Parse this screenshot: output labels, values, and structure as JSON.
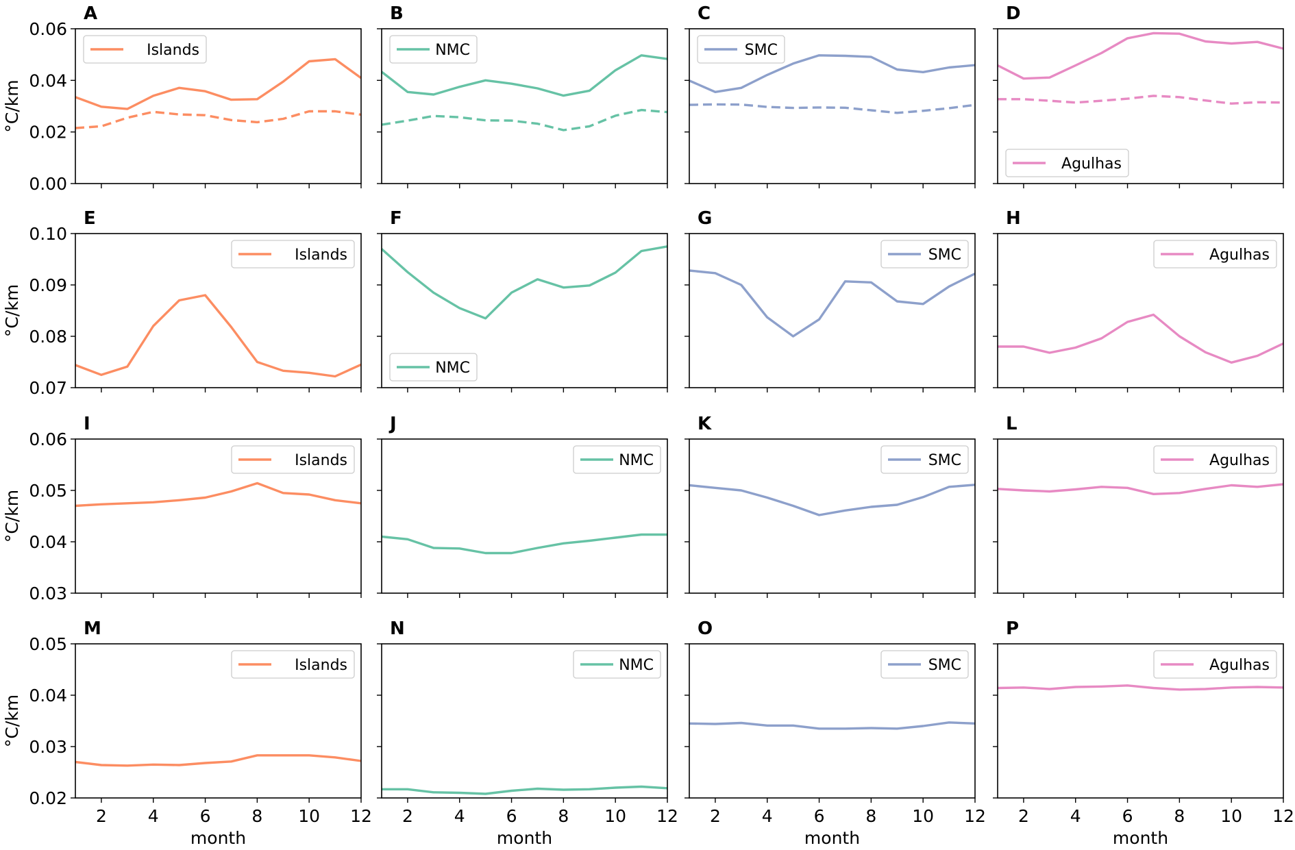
{
  "figure": {
    "y_label": "°C/km",
    "x_label": "month"
  },
  "chart_data": [
    {
      "panel": "A",
      "type": "line",
      "x": [
        1,
        2,
        3,
        4,
        5,
        6,
        7,
        8,
        9,
        10,
        11,
        12
      ],
      "ylim": [
        0.0,
        0.06
      ],
      "yticks": [
        0.0,
        0.02,
        0.04,
        0.06
      ],
      "ytick_labels": [
        "0.00",
        "0.02",
        "0.04",
        "0.06"
      ],
      "xticks": [
        2,
        4,
        6,
        8,
        10,
        12
      ],
      "color": "#fc8d62",
      "legend": {
        "label": "Islands",
        "position": "top-left"
      },
      "series": [
        {
          "name": "Islands",
          "style": "solid",
          "values": [
            0.0335,
            0.0298,
            0.0289,
            0.034,
            0.0371,
            0.0358,
            0.0325,
            0.0327,
            0.0395,
            0.0474,
            0.0482,
            0.0409
          ]
        },
        {
          "name": "Islands (dashed)",
          "style": "dashed",
          "values": [
            0.0215,
            0.0222,
            0.0255,
            0.0278,
            0.0268,
            0.0265,
            0.0246,
            0.0238,
            0.0251,
            0.028,
            0.028,
            0.0267
          ]
        }
      ]
    },
    {
      "panel": "B",
      "type": "line",
      "x": [
        1,
        2,
        3,
        4,
        5,
        6,
        7,
        8,
        9,
        10,
        11,
        12
      ],
      "ylim": [
        0.0,
        0.06
      ],
      "yticks": [
        0.0,
        0.02,
        0.04,
        0.06
      ],
      "xticks": [
        2,
        4,
        6,
        8,
        10,
        12
      ],
      "color": "#66c2a5",
      "legend": {
        "label": "NMC",
        "position": "top-left"
      },
      "series": [
        {
          "name": "NMC",
          "style": "solid",
          "values": [
            0.0433,
            0.0355,
            0.0345,
            0.0375,
            0.04,
            0.0387,
            0.0369,
            0.0341,
            0.036,
            0.0439,
            0.0497,
            0.0483
          ]
        },
        {
          "name": "NMC (dashed)",
          "style": "dashed",
          "values": [
            0.0228,
            0.0244,
            0.0262,
            0.0257,
            0.0245,
            0.0244,
            0.0232,
            0.0207,
            0.0222,
            0.0263,
            0.0285,
            0.0277
          ]
        }
      ]
    },
    {
      "panel": "C",
      "type": "line",
      "x": [
        1,
        2,
        3,
        4,
        5,
        6,
        7,
        8,
        9,
        10,
        11,
        12
      ],
      "ylim": [
        0.0,
        0.06
      ],
      "yticks": [
        0.0,
        0.02,
        0.04,
        0.06
      ],
      "xticks": [
        2,
        4,
        6,
        8,
        10,
        12
      ],
      "color": "#8da0cb",
      "legend": {
        "label": "SMC",
        "position": "top-left"
      },
      "series": [
        {
          "name": "SMC",
          "style": "solid",
          "values": [
            0.0399,
            0.0355,
            0.0371,
            0.0421,
            0.0465,
            0.0497,
            0.0495,
            0.0491,
            0.0442,
            0.0432,
            0.045,
            0.0459
          ]
        },
        {
          "name": "SMC (dashed)",
          "style": "dashed",
          "values": [
            0.0305,
            0.0307,
            0.0306,
            0.0297,
            0.0293,
            0.0295,
            0.0294,
            0.0284,
            0.0274,
            0.0282,
            0.0292,
            0.0305
          ]
        }
      ]
    },
    {
      "panel": "D",
      "type": "line",
      "x": [
        1,
        2,
        3,
        4,
        5,
        6,
        7,
        8,
        9,
        10,
        11,
        12
      ],
      "ylim": [
        0.0,
        0.06
      ],
      "yticks": [
        0.0,
        0.02,
        0.04,
        0.06
      ],
      "xticks": [
        2,
        4,
        6,
        8,
        10,
        12
      ],
      "color": "#e78ac3",
      "legend": {
        "label": "Agulhas",
        "position": "bottom-left"
      },
      "series": [
        {
          "name": "Agulhas",
          "style": "solid",
          "values": [
            0.0458,
            0.0407,
            0.0411,
            0.0458,
            0.0506,
            0.0563,
            0.0583,
            0.0581,
            0.0551,
            0.0543,
            0.0549,
            0.0523
          ]
        },
        {
          "name": "Agulhas (dashed)",
          "style": "dashed",
          "values": [
            0.0327,
            0.0327,
            0.0321,
            0.0314,
            0.0321,
            0.0329,
            0.034,
            0.0335,
            0.0322,
            0.031,
            0.0315,
            0.0314
          ]
        }
      ]
    },
    {
      "panel": "E",
      "type": "line",
      "x": [
        1,
        2,
        3,
        4,
        5,
        6,
        7,
        8,
        9,
        10,
        11,
        12
      ],
      "ylim": [
        0.07,
        0.1
      ],
      "yticks": [
        0.07,
        0.08,
        0.09,
        0.1
      ],
      "ytick_labels": [
        "0.07",
        "0.08",
        "0.09",
        "0.10"
      ],
      "xticks": [
        2,
        4,
        6,
        8,
        10,
        12
      ],
      "color": "#fc8d62",
      "legend": {
        "label": "Islands",
        "position": "top-right"
      },
      "series": [
        {
          "name": "Islands",
          "style": "solid",
          "values": [
            0.0744,
            0.0725,
            0.0741,
            0.082,
            0.087,
            0.088,
            0.0818,
            0.075,
            0.0733,
            0.0729,
            0.0722,
            0.0745
          ]
        }
      ]
    },
    {
      "panel": "F",
      "type": "line",
      "x": [
        1,
        2,
        3,
        4,
        5,
        6,
        7,
        8,
        9,
        10,
        11,
        12
      ],
      "ylim": [
        0.07,
        0.1
      ],
      "yticks": [
        0.07,
        0.08,
        0.09,
        0.1
      ],
      "xticks": [
        2,
        4,
        6,
        8,
        10,
        12
      ],
      "color": "#66c2a5",
      "legend": {
        "label": "NMC",
        "position": "bottom-left"
      },
      "series": [
        {
          "name": "NMC",
          "style": "solid",
          "values": [
            0.097,
            0.0925,
            0.0885,
            0.0855,
            0.0835,
            0.0885,
            0.0911,
            0.0895,
            0.0899,
            0.0924,
            0.0966,
            0.0975
          ]
        }
      ]
    },
    {
      "panel": "G",
      "type": "line",
      "x": [
        1,
        2,
        3,
        4,
        5,
        6,
        7,
        8,
        9,
        10,
        11,
        12
      ],
      "ylim": [
        0.07,
        0.1
      ],
      "yticks": [
        0.07,
        0.08,
        0.09,
        0.1
      ],
      "xticks": [
        2,
        4,
        6,
        8,
        10,
        12
      ],
      "color": "#8da0cb",
      "legend": {
        "label": "SMC",
        "position": "top-right"
      },
      "series": [
        {
          "name": "SMC",
          "style": "solid",
          "values": [
            0.0928,
            0.0923,
            0.09,
            0.0837,
            0.08,
            0.0833,
            0.0907,
            0.0905,
            0.0868,
            0.0863,
            0.0897,
            0.0922
          ]
        }
      ]
    },
    {
      "panel": "H",
      "type": "line",
      "x": [
        1,
        2,
        3,
        4,
        5,
        6,
        7,
        8,
        9,
        10,
        11,
        12
      ],
      "ylim": [
        0.07,
        0.1
      ],
      "yticks": [
        0.07,
        0.08,
        0.09,
        0.1
      ],
      "xticks": [
        2,
        4,
        6,
        8,
        10,
        12
      ],
      "color": "#e78ac3",
      "legend": {
        "label": "Agulhas",
        "position": "top-right"
      },
      "series": [
        {
          "name": "Agulhas",
          "style": "solid",
          "values": [
            0.078,
            0.078,
            0.0768,
            0.0778,
            0.0796,
            0.0828,
            0.0842,
            0.08,
            0.0769,
            0.0749,
            0.0762,
            0.0786
          ]
        }
      ]
    },
    {
      "panel": "I",
      "type": "line",
      "x": [
        1,
        2,
        3,
        4,
        5,
        6,
        7,
        8,
        9,
        10,
        11,
        12
      ],
      "ylim": [
        0.03,
        0.06
      ],
      "yticks": [
        0.03,
        0.04,
        0.05,
        0.06
      ],
      "ytick_labels": [
        "0.03",
        "0.04",
        "0.05",
        "0.06"
      ],
      "xticks": [
        2,
        4,
        6,
        8,
        10,
        12
      ],
      "color": "#fc8d62",
      "legend": {
        "label": "Islands",
        "position": "top-right"
      },
      "series": [
        {
          "name": "Islands",
          "style": "solid",
          "values": [
            0.047,
            0.0473,
            0.0475,
            0.0477,
            0.0481,
            0.0486,
            0.0498,
            0.0514,
            0.0495,
            0.0492,
            0.0481,
            0.0475
          ]
        }
      ]
    },
    {
      "panel": "J",
      "type": "line",
      "x": [
        1,
        2,
        3,
        4,
        5,
        6,
        7,
        8,
        9,
        10,
        11,
        12
      ],
      "ylim": [
        0.03,
        0.06
      ],
      "yticks": [
        0.03,
        0.04,
        0.05,
        0.06
      ],
      "xticks": [
        2,
        4,
        6,
        8,
        10,
        12
      ],
      "color": "#66c2a5",
      "legend": {
        "label": "NMC",
        "position": "top-right"
      },
      "series": [
        {
          "name": "NMC",
          "style": "solid",
          "values": [
            0.041,
            0.0405,
            0.0388,
            0.0387,
            0.0378,
            0.0378,
            0.0388,
            0.0397,
            0.0402,
            0.0408,
            0.0414,
            0.0414
          ]
        }
      ]
    },
    {
      "panel": "K",
      "type": "line",
      "x": [
        1,
        2,
        3,
        4,
        5,
        6,
        7,
        8,
        9,
        10,
        11,
        12
      ],
      "ylim": [
        0.03,
        0.06
      ],
      "yticks": [
        0.03,
        0.04,
        0.05,
        0.06
      ],
      "xticks": [
        2,
        4,
        6,
        8,
        10,
        12
      ],
      "color": "#8da0cb",
      "legend": {
        "label": "SMC",
        "position": "top-right"
      },
      "series": [
        {
          "name": "SMC",
          "style": "solid",
          "values": [
            0.051,
            0.0505,
            0.05,
            0.0486,
            0.047,
            0.0452,
            0.0461,
            0.0468,
            0.0472,
            0.0487,
            0.0507,
            0.0511
          ]
        }
      ]
    },
    {
      "panel": "L",
      "type": "line",
      "x": [
        1,
        2,
        3,
        4,
        5,
        6,
        7,
        8,
        9,
        10,
        11,
        12
      ],
      "ylim": [
        0.03,
        0.06
      ],
      "yticks": [
        0.03,
        0.04,
        0.05,
        0.06
      ],
      "xticks": [
        2,
        4,
        6,
        8,
        10,
        12
      ],
      "color": "#e78ac3",
      "legend": {
        "label": "Agulhas",
        "position": "top-right"
      },
      "series": [
        {
          "name": "Agulhas",
          "style": "solid",
          "values": [
            0.0503,
            0.05,
            0.0498,
            0.0502,
            0.0507,
            0.0505,
            0.0493,
            0.0495,
            0.0503,
            0.051,
            0.0507,
            0.0512
          ]
        }
      ]
    },
    {
      "panel": "M",
      "type": "line",
      "x": [
        1,
        2,
        3,
        4,
        5,
        6,
        7,
        8,
        9,
        10,
        11,
        12
      ],
      "ylim": [
        0.02,
        0.05
      ],
      "yticks": [
        0.02,
        0.03,
        0.04,
        0.05
      ],
      "ytick_labels": [
        "0.02",
        "0.03",
        "0.04",
        "0.05"
      ],
      "xticks": [
        2,
        4,
        6,
        8,
        10,
        12
      ],
      "xtick_labels": [
        "2",
        "4",
        "6",
        "8",
        "10",
        "12"
      ],
      "color": "#fc8d62",
      "legend": {
        "label": "Islands",
        "position": "top-right"
      },
      "series": [
        {
          "name": "Islands",
          "style": "solid",
          "values": [
            0.027,
            0.0264,
            0.0263,
            0.0265,
            0.0264,
            0.0268,
            0.0271,
            0.0283,
            0.0283,
            0.0283,
            0.0279,
            0.0272
          ]
        }
      ]
    },
    {
      "panel": "N",
      "type": "line",
      "x": [
        1,
        2,
        3,
        4,
        5,
        6,
        7,
        8,
        9,
        10,
        11,
        12
      ],
      "ylim": [
        0.02,
        0.05
      ],
      "yticks": [
        0.02,
        0.03,
        0.04,
        0.05
      ],
      "xticks": [
        2,
        4,
        6,
        8,
        10,
        12
      ],
      "xtick_labels": [
        "2",
        "4",
        "6",
        "8",
        "10",
        "12"
      ],
      "color": "#66c2a5",
      "legend": {
        "label": "NMC",
        "position": "top-right"
      },
      "series": [
        {
          "name": "NMC",
          "style": "solid",
          "values": [
            0.0217,
            0.0217,
            0.0211,
            0.021,
            0.0208,
            0.0214,
            0.0218,
            0.0216,
            0.0217,
            0.022,
            0.0222,
            0.0219
          ]
        }
      ]
    },
    {
      "panel": "O",
      "type": "line",
      "x": [
        1,
        2,
        3,
        4,
        5,
        6,
        7,
        8,
        9,
        10,
        11,
        12
      ],
      "ylim": [
        0.02,
        0.05
      ],
      "yticks": [
        0.02,
        0.03,
        0.04,
        0.05
      ],
      "xticks": [
        2,
        4,
        6,
        8,
        10,
        12
      ],
      "xtick_labels": [
        "2",
        "4",
        "6",
        "8",
        "10",
        "12"
      ],
      "color": "#8da0cb",
      "legend": {
        "label": "SMC",
        "position": "top-right"
      },
      "series": [
        {
          "name": "SMC",
          "style": "solid",
          "values": [
            0.0345,
            0.0344,
            0.0346,
            0.0341,
            0.0341,
            0.0335,
            0.0335,
            0.0336,
            0.0335,
            0.034,
            0.0347,
            0.0345
          ]
        }
      ]
    },
    {
      "panel": "P",
      "type": "line",
      "x": [
        1,
        2,
        3,
        4,
        5,
        6,
        7,
        8,
        9,
        10,
        11,
        12
      ],
      "ylim": [
        0.02,
        0.05
      ],
      "yticks": [
        0.02,
        0.03,
        0.04,
        0.05
      ],
      "xticks": [
        2,
        4,
        6,
        8,
        10,
        12
      ],
      "xtick_labels": [
        "2",
        "4",
        "6",
        "8",
        "10",
        "12"
      ],
      "color": "#e78ac3",
      "legend": {
        "label": "Agulhas",
        "position": "top-right"
      },
      "series": [
        {
          "name": "Agulhas",
          "style": "solid",
          "values": [
            0.0414,
            0.0415,
            0.0412,
            0.0416,
            0.0417,
            0.0419,
            0.0414,
            0.0411,
            0.0412,
            0.0415,
            0.0416,
            0.0415
          ]
        }
      ]
    }
  ]
}
